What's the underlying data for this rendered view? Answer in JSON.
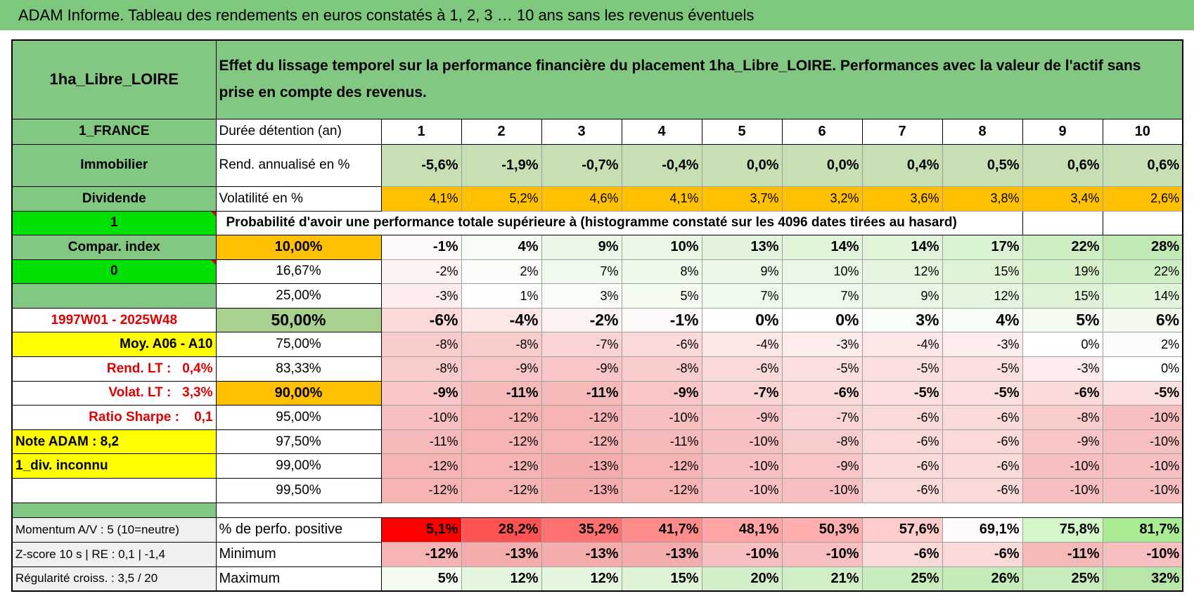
{
  "header": {
    "title": "ADAM Informe. Tableau des rendements en euros constatés à 1, 2, 3 … 10 ans sans les revenus éventuels"
  },
  "table": {
    "corner": "1ha_Libre_LOIRE",
    "description": "Effet du lissage temporel sur la performance financière du placement 1ha_Libre_LOIRE. Performances avec la valeur de l'actif sans prise en compte des revenus.",
    "side": [
      "1_FRANCE",
      "Immobilier",
      "Dividende",
      "1",
      "Compar. index",
      "0",
      null,
      "1997W01 - 2025W48",
      "Moy. A06 - A10",
      "Rend. LT :   0,4%",
      "Volat. LT :   3,3%",
      "Ratio Sharpe :    0,1",
      "Note ADAM : 8,2",
      "1_div. inconnu",
      null
    ],
    "rows": [
      [
        "Durée détention (an)",
        "1",
        "2",
        "3",
        "4",
        "5",
        "6",
        "7",
        "8",
        "9",
        "10"
      ],
      [
        "Rend. annualisé en %",
        "-5,6%",
        "-1,9%",
        "-0,7%",
        "-0,4%",
        "0,0%",
        "0,0%",
        "0,4%",
        "0,5%",
        "0,6%",
        "0,6%"
      ],
      [
        "Volatilité en %",
        "4,1%",
        "5,2%",
        "4,6%",
        "4,1%",
        "3,7%",
        "3,2%",
        "3,6%",
        "3,8%",
        "3,4%",
        "2,6%"
      ],
      [
        "Probabilité d'avoir une performance totale supérieure à (histogramme constaté sur les 4096 dates tirées au hasard)"
      ],
      [
        "10,00%",
        "-1%",
        "4%",
        "9%",
        "10%",
        "13%",
        "14%",
        "14%",
        "17%",
        "22%",
        "28%"
      ],
      [
        "16,67%",
        "-2%",
        "2%",
        "7%",
        "8%",
        "9%",
        "10%",
        "12%",
        "15%",
        "19%",
        "22%"
      ],
      [
        "25,00%",
        "-3%",
        "1%",
        "3%",
        "5%",
        "7%",
        "7%",
        "9%",
        "12%",
        "15%",
        "14%"
      ],
      [
        "50,00%",
        "-6%",
        "-4%",
        "-2%",
        "-1%",
        "0%",
        "0%",
        "3%",
        "4%",
        "5%",
        "6%"
      ],
      [
        "75,00%",
        "-8%",
        "-8%",
        "-7%",
        "-6%",
        "-4%",
        "-3%",
        "-4%",
        "-3%",
        "0%",
        "2%"
      ],
      [
        "83,33%",
        "-8%",
        "-9%",
        "-9%",
        "-8%",
        "-6%",
        "-5%",
        "-5%",
        "-5%",
        "-3%",
        "0%"
      ],
      [
        "90,00%",
        "-9%",
        "-11%",
        "-11%",
        "-9%",
        "-7%",
        "-6%",
        "-5%",
        "-5%",
        "-6%",
        "-5%"
      ],
      [
        "95,00%",
        "-10%",
        "-12%",
        "-12%",
        "-10%",
        "-9%",
        "-7%",
        "-6%",
        "-6%",
        "-8%",
        "-10%"
      ],
      [
        "97,50%",
        "-11%",
        "-12%",
        "-12%",
        "-11%",
        "-10%",
        "-8%",
        "-6%",
        "-6%",
        "-9%",
        "-10%"
      ],
      [
        "99,00%",
        "-12%",
        "-12%",
        "-13%",
        "-12%",
        "-10%",
        "-9%",
        "-6%",
        "-6%",
        "-10%",
        "-10%"
      ],
      [
        "99,50%",
        "-12%",
        "-12%",
        "-13%",
        "-12%",
        "-10%",
        "-10%",
        "-6%",
        "-6%",
        "-10%",
        "-10%"
      ]
    ],
    "footer_side": [
      "Momentum A/V : 5 (10=neutre)",
      "Z-score 10 s | RE : 0,1 | -1,4",
      "Régularité croiss. : 3,5 / 20"
    ],
    "footer_rows": [
      [
        "% de perfo. positive",
        "5,1%",
        "28,2%",
        "35,2%",
        "41,7%",
        "48,1%",
        "50,3%",
        "57,6%",
        "69,1%",
        "75,8%",
        "81,7%"
      ],
      [
        "Minimum",
        "-12%",
        "-13%",
        "-13%",
        "-13%",
        "-10%",
        "-10%",
        "-6%",
        "-6%",
        "-11%",
        "-10%"
      ],
      [
        "Maximum",
        "5%",
        "12%",
        "12%",
        "15%",
        "20%",
        "21%",
        "25%",
        "26%",
        "25%",
        "32%"
      ]
    ]
  }
}
